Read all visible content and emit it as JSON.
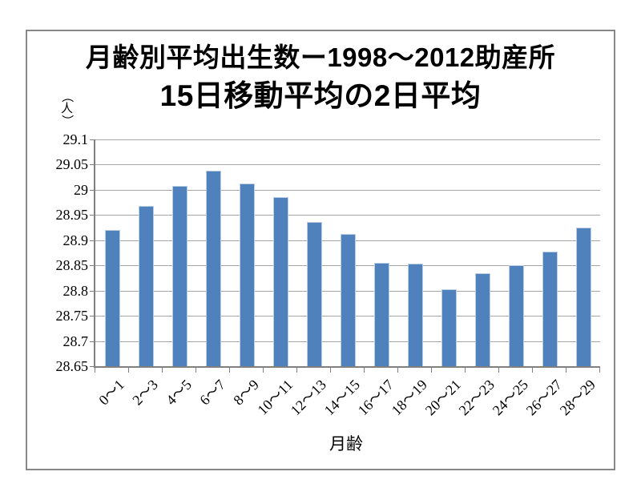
{
  "title": {
    "line1": "月齢別平均出生数ー1998～2012助産所",
    "line2": "15日移動平均の2日平均"
  },
  "chart_data": {
    "type": "bar",
    "title": "月齢別平均出生数ー1998～2012助産所 15日移動平均の2日平均",
    "xlabel": "月齢",
    "y_unit_label": "（人）",
    "categories": [
      "0～1",
      "2～3",
      "4～5",
      "6～7",
      "8～9",
      "10～11",
      "12～13",
      "14～15",
      "16～17",
      "18～19",
      "20～21",
      "22～23",
      "24～25",
      "26～27",
      "28～29"
    ],
    "values": [
      28.92,
      28.968,
      29.007,
      29.038,
      29.012,
      28.985,
      28.936,
      28.913,
      28.855,
      28.853,
      28.802,
      28.835,
      28.85,
      28.878,
      28.925
    ],
    "ylim": [
      28.65,
      29.1
    ],
    "ytick_step": 0.05,
    "ytick_labels": [
      "29.1",
      "29.05",
      "29",
      "28.95",
      "28.9",
      "28.85",
      "28.8",
      "28.75",
      "28.7",
      "28.65"
    ],
    "grid": true,
    "legend": false,
    "colors": {
      "bar_fill": "#4f81bd",
      "bar_edge": "#bccee4",
      "gridline": "#a6a6a6",
      "axis": "#808080",
      "frame_border": "#888888",
      "text": "#000000"
    }
  }
}
